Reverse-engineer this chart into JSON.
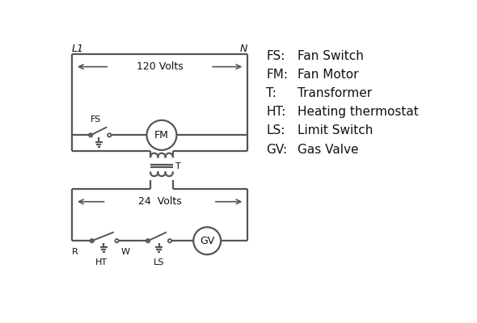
{
  "bg_color": "#ffffff",
  "line_color": "#555555",
  "text_color": "#111111",
  "legend_items": [
    [
      "FS:",
      "Fan Switch"
    ],
    [
      "FM:",
      " Fan Motor"
    ],
    [
      "T:",
      "    Transformer"
    ],
    [
      "HT:",
      "  Heating thermostat"
    ],
    [
      "LS:",
      "  Limit Switch"
    ],
    [
      "GV:",
      " Gas Valve"
    ]
  ],
  "L1_label": "L1",
  "N_label": "N",
  "volts120_label": "120 Volts",
  "volts24_label": "24  Volts",
  "T_label": "T",
  "FS_label": "FS",
  "FM_label": "FM",
  "R_label": "R",
  "W_label": "W",
  "HT_label": "HT",
  "LS_label": "LS",
  "GV_label": "GV"
}
